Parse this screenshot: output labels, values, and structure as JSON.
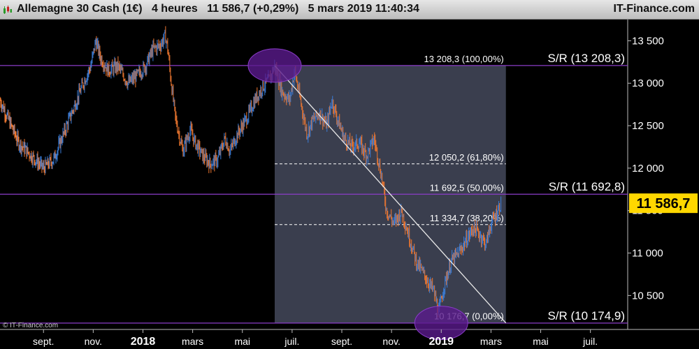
{
  "header": {
    "title": "Allemagne 30 Cash (1€)   4 heures   11 586,7 (+0,29%)   5 mars 2019 11:40:34",
    "brand": "IT-Finance.com"
  },
  "watermark": "© IT-Finance.com",
  "colors": {
    "background": "#000000",
    "up_candle": "#3b7dd8",
    "down_candle": "#f07830",
    "sr_line": "#8a3cc8",
    "fib_zone": "#3a3e4e",
    "trend_line": "#e8e8e8",
    "highlight_circle": "#5a1a8c",
    "price_box": "#ffd700"
  },
  "chart_data": {
    "type": "line",
    "title": "Allemagne 30 Cash (1€)",
    "timeframe": "4 heures",
    "last_price": 11586.7,
    "last_price_label": "11 586,7",
    "change_label": "+0,29%",
    "ylim": [
      10100,
      13750
    ],
    "y_ticks": [
      {
        "value": 10500,
        "label": "10 500"
      },
      {
        "value": 11000,
        "label": "11 000"
      },
      {
        "value": 11500,
        "label": "11 500"
      },
      {
        "value": 12000,
        "label": "12 000"
      },
      {
        "value": 12500,
        "label": "12 500"
      },
      {
        "value": 13000,
        "label": "13 000"
      },
      {
        "value": 13500,
        "label": "13 500"
      }
    ],
    "x_ticks": [
      {
        "month": 2,
        "label": "sept.",
        "bold": false
      },
      {
        "month": 4,
        "label": "nov.",
        "bold": false
      },
      {
        "month": 6,
        "label": "2018",
        "bold": true
      },
      {
        "month": 8,
        "label": "mars",
        "bold": false
      },
      {
        "month": 10,
        "label": "mai",
        "bold": false
      },
      {
        "month": 12,
        "label": "juil.",
        "bold": false
      },
      {
        "month": 14,
        "label": "sept.",
        "bold": false
      },
      {
        "month": 16,
        "label": "nov.",
        "bold": false
      },
      {
        "month": 18,
        "label": "2019",
        "bold": true
      },
      {
        "month": 20,
        "label": "mars",
        "bold": false
      },
      {
        "month": 22,
        "label": "mai",
        "bold": false
      },
      {
        "month": 24,
        "label": "juil.",
        "bold": false
      }
    ],
    "x_domain_months": [
      0.25,
      25.5
    ],
    "price_path": [
      [
        0.25,
        12800
      ],
      [
        0.7,
        12500
      ],
      [
        1.0,
        12300
      ],
      [
        1.5,
        12150
      ],
      [
        2.0,
        12000
      ],
      [
        2.4,
        12100
      ],
      [
        2.8,
        12400
      ],
      [
        3.2,
        12700
      ],
      [
        3.6,
        13000
      ],
      [
        3.9,
        13200
      ],
      [
        4.1,
        13500
      ],
      [
        4.3,
        13300
      ],
      [
        4.6,
        13150
      ],
      [
        5.0,
        13200
      ],
      [
        5.4,
        13000
      ],
      [
        5.8,
        13100
      ],
      [
        6.1,
        13200
      ],
      [
        6.4,
        13400
      ],
      [
        6.7,
        13450
      ],
      [
        6.9,
        13560
      ],
      [
        7.0,
        13400
      ],
      [
        7.1,
        13100
      ],
      [
        7.3,
        12600
      ],
      [
        7.6,
        12200
      ],
      [
        7.9,
        12450
      ],
      [
        8.1,
        12300
      ],
      [
        8.4,
        12150
      ],
      [
        8.7,
        12050
      ],
      [
        9.0,
        12100
      ],
      [
        9.3,
        12350
      ],
      [
        9.5,
        12200
      ],
      [
        9.8,
        12400
      ],
      [
        10.2,
        12600
      ],
      [
        10.5,
        12800
      ],
      [
        10.8,
        12950
      ],
      [
        11.1,
        13050
      ],
      [
        11.3,
        13208
      ],
      [
        11.6,
        12900
      ],
      [
        11.9,
        12800
      ],
      [
        12.1,
        13150
      ],
      [
        12.4,
        12700
      ],
      [
        12.6,
        12400
      ],
      [
        12.8,
        12550
      ],
      [
        13.1,
        12650
      ],
      [
        13.4,
        12500
      ],
      [
        13.6,
        12800
      ],
      [
        13.8,
        12600
      ],
      [
        14.1,
        12350
      ],
      [
        14.4,
        12250
      ],
      [
        14.7,
        12300
      ],
      [
        15.0,
        12150
      ],
      [
        15.3,
        12350
      ],
      [
        15.6,
        11900
      ],
      [
        15.8,
        11500
      ],
      [
        16.1,
        11350
      ],
      [
        16.4,
        11500
      ],
      [
        16.7,
        11200
      ],
      [
        17.0,
        10900
      ],
      [
        17.2,
        10800
      ],
      [
        17.5,
        10650
      ],
      [
        17.7,
        10550
      ],
      [
        17.9,
        10300
      ],
      [
        18.1,
        10600
      ],
      [
        18.4,
        10900
      ],
      [
        18.7,
        11000
      ],
      [
        19.0,
        11150
      ],
      [
        19.3,
        11300
      ],
      [
        19.6,
        11200
      ],
      [
        19.8,
        11100
      ],
      [
        20.0,
        11350
      ],
      [
        20.2,
        11450
      ],
      [
        20.4,
        11586.7
      ]
    ],
    "support_resistance": [
      {
        "value": 13208.3,
        "label": "S/R (13 208,3)"
      },
      {
        "value": 11692.8,
        "label": "S/R (11 692,8)"
      },
      {
        "value": 10174.9,
        "label": "S/R (10 174,9)"
      }
    ],
    "fibonacci": {
      "x_start_month": 11.3,
      "x_end_month": 20.6,
      "levels": [
        {
          "value": 13208.3,
          "label": "13 208,3 (100,00%)",
          "dashed": false
        },
        {
          "value": 12050.2,
          "label": "12 050,2 (61,80%)",
          "dashed": true
        },
        {
          "value": 11692.5,
          "label": "11 692,5 (50,00%)",
          "dashed": false
        },
        {
          "value": 11334.7,
          "label": "11 334,7 (38,20%)",
          "dashed": true
        },
        {
          "value": 10176.7,
          "label": "10 176,7 (0,00%)",
          "dashed": false
        }
      ]
    },
    "trend_line": [
      [
        11.3,
        13208.3
      ],
      [
        20.6,
        10176.7
      ]
    ],
    "highlights": [
      {
        "month": 11.3,
        "value": 13208.3
      },
      {
        "month": 18.0,
        "value": 10176.7
      }
    ]
  }
}
